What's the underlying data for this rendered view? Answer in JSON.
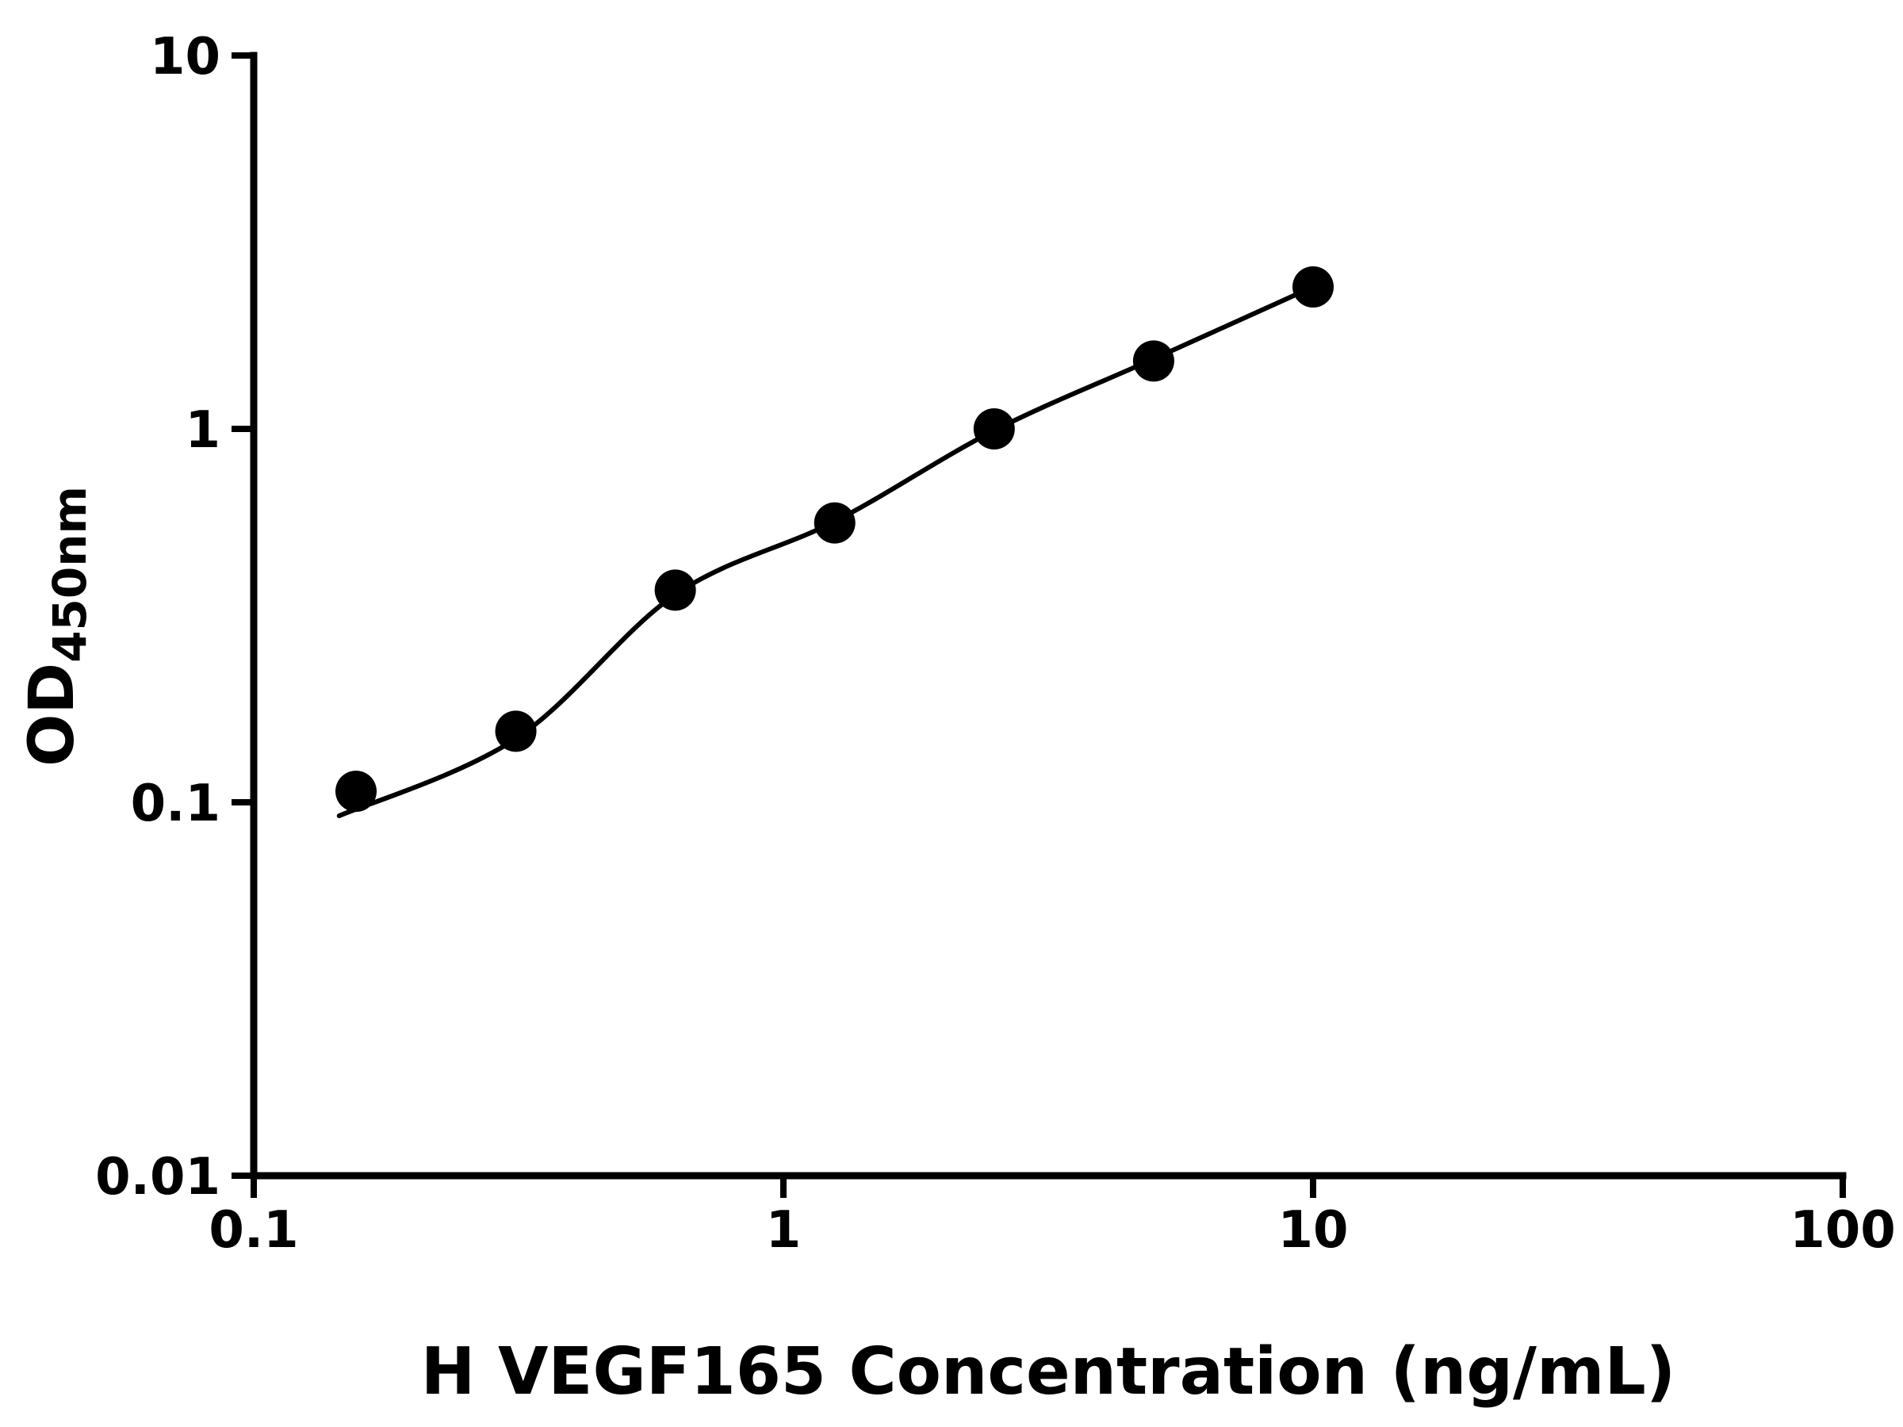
{
  "chart_data": {
    "type": "scatter",
    "title": "",
    "xlabel": "H VEGF165 Concentration (ng/mL)",
    "ylabel_main": "OD",
    "ylabel_sub": "450nm",
    "x_scale": "log",
    "y_scale": "log",
    "xlim": [
      0.1,
      100
    ],
    "ylim": [
      0.01,
      10
    ],
    "grid": false,
    "legend": "none",
    "x_ticks": [
      {
        "value": 0.1,
        "label": "0.1"
      },
      {
        "value": 1,
        "label": "1"
      },
      {
        "value": 10,
        "label": "10"
      },
      {
        "value": 100,
        "label": "100"
      }
    ],
    "y_ticks": [
      {
        "value": 0.01,
        "label": "0.01"
      },
      {
        "value": 0.1,
        "label": "0.1"
      },
      {
        "value": 1,
        "label": "1"
      },
      {
        "value": 10,
        "label": "10"
      }
    ],
    "points": [
      {
        "x": 0.156,
        "y": 0.107
      },
      {
        "x": 0.3125,
        "y": 0.155
      },
      {
        "x": 0.625,
        "y": 0.37
      },
      {
        "x": 1.25,
        "y": 0.56
      },
      {
        "x": 2.5,
        "y": 1.0
      },
      {
        "x": 5,
        "y": 1.52
      },
      {
        "x": 10,
        "y": 2.4
      }
    ],
    "fit_curve_anchors": [
      {
        "x": 0.145,
        "y": 0.092
      },
      {
        "x": 0.3125,
        "y": 0.148
      },
      {
        "x": 0.625,
        "y": 0.36
      },
      {
        "x": 1.25,
        "y": 0.565
      },
      {
        "x": 2.5,
        "y": 0.99
      },
      {
        "x": 5,
        "y": 1.54
      },
      {
        "x": 10,
        "y": 2.4
      }
    ],
    "marker_color": "#000000",
    "curve_color": "#000000"
  }
}
